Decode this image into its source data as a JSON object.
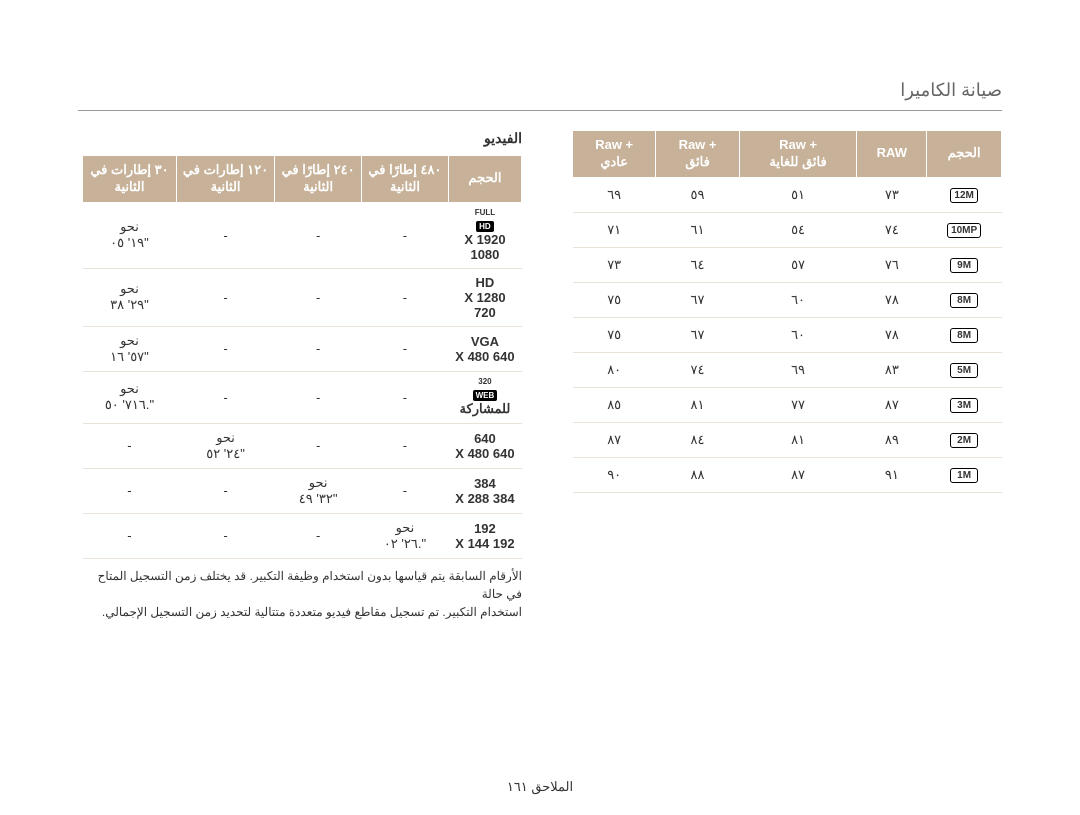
{
  "title": "صيانة الكاميرا",
  "page_footer": "الملاحق ١٦١",
  "raw_table": {
    "headers": [
      "الحجم",
      "RAW",
      "+ Raw\nفائق للغاية",
      "+ Raw\nفائق",
      "+ Raw\nعادي"
    ],
    "rows": [
      {
        "size": "12M",
        "c": [
          "٧٣",
          "٥١",
          "٥٩",
          "٦٩"
        ]
      },
      {
        "size": "10MP",
        "c": [
          "٧٤",
          "٥٤",
          "٦١",
          "٧١"
        ]
      },
      {
        "size": "9M",
        "c": [
          "٧٦",
          "٥٧",
          "٦٤",
          "٧٣"
        ]
      },
      {
        "size": "8M",
        "c": [
          "٧٨",
          "٦٠",
          "٦٧",
          "٧٥"
        ]
      },
      {
        "size": "8M",
        "c": [
          "٧٨",
          "٦٠",
          "٦٧",
          "٧٥"
        ]
      },
      {
        "size": "5M",
        "c": [
          "٨٣",
          "٦٩",
          "٧٤",
          "٨٠"
        ]
      },
      {
        "size": "3M",
        "c": [
          "٨٧",
          "٧٧",
          "٨١",
          "٨٥"
        ]
      },
      {
        "size": "2M",
        "c": [
          "٨٩",
          "٨١",
          "٨٤",
          "٨٧"
        ]
      },
      {
        "size": "1M",
        "c": [
          "٩١",
          "٨٧",
          "٨٨",
          "٩٠"
        ]
      }
    ]
  },
  "video_table": {
    "section_title": "الفيديو",
    "headers": [
      "الحجم",
      "٤٨٠ إطارًا في الثانية",
      "٢٤٠ إطارًا في الثانية",
      "١٢٠ إطارات في الثانية",
      "٣٠ إطارات في الثانية"
    ],
    "rows": [
      {
        "main_top": "FULL",
        "main_icon": "HD",
        "sub": "1920 X 1080",
        "fps": {
          "480": "-",
          "240": "-",
          "120": "-",
          "30": "نحو\n١٩' ٠٥\""
        }
      },
      {
        "main": "HD",
        "sub": "1280 X 720",
        "fps": {
          "480": "-",
          "240": "-",
          "120": "-",
          "30": "نحو\n٢٩' ٣٨\""
        }
      },
      {
        "main": "VGA",
        "sub": "640 X 480",
        "fps": {
          "480": "-",
          "240": "-",
          "120": "-",
          "30": "نحو\n٥٧' ١٦\""
        }
      },
      {
        "main_top": "320",
        "main_icon": "WEB",
        "sub": "للمشاركة",
        "fps": {
          "480": "-",
          "240": "-",
          "120": "-",
          "30": "نحو\n٧١٦' ٥٠.\""
        }
      },
      {
        "main": "640",
        "sub": "640 X 480",
        "fps": {
          "480": "-",
          "240": "-",
          "120": "نحو\n٢٤' ٥٢\"",
          "30": "-"
        }
      },
      {
        "main": "384",
        "sub": "384 X 288",
        "fps": {
          "480": "-",
          "240": "نحو\n٣٢' ٤٩\"",
          "120": "-",
          "30": "-"
        }
      },
      {
        "main": "192",
        "sub": "192 X 144",
        "fps": {
          "480": "نحو\n٢٦' ٠٢.\"",
          "240": "-",
          "120": "-",
          "30": "-"
        }
      }
    ],
    "footnote_line1": "الأرقام السابقة يتم قياسها بدون استخدام وظيفة التكبير. قد يختلف زمن التسجيل المتاح في حالة",
    "footnote_line2": "استخدام التكبير. تم تسجيل مقاطع فيديو متعددة متتالية لتحديد زمن التسجيل الإجمالي."
  },
  "colors": {
    "header_bg": "#c7b299",
    "row_border": "#e9e2d8",
    "text": "#333333"
  }
}
